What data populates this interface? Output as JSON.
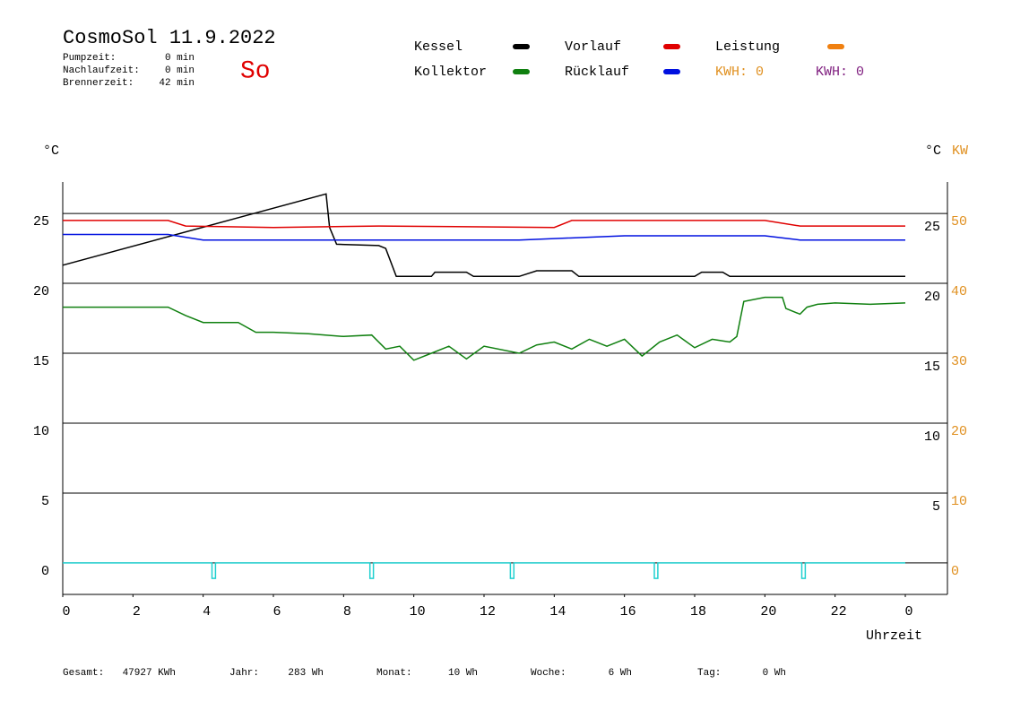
{
  "header": {
    "title": "CosmoSol 11.9.2022",
    "day": "So",
    "stats": [
      {
        "label": "Pumpzeit:",
        "value": "0 min"
      },
      {
        "label": "Nachlaufzeit:",
        "value": "0 min"
      },
      {
        "label": "Brennerzeit:",
        "value": "42 min"
      }
    ]
  },
  "legend_extra": [
    {
      "name": "Leistung",
      "color": "#f08010"
    }
  ],
  "kwh": [
    {
      "text": "KWH: 0",
      "color": "#e09020"
    },
    {
      "text": "KWH: 0",
      "color": "#802080"
    }
  ],
  "footer": [
    {
      "label": "Gesamt:",
      "value": "47927 KWh"
    },
    {
      "label": "Jahr:",
      "value": "283 Wh"
    },
    {
      "label": "Monat:",
      "value": "10 Wh"
    },
    {
      "label": "Woche:",
      "value": "6 Wh"
    },
    {
      "label": "Tag:",
      "value": "0 Wh"
    }
  ],
  "chart_data": {
    "type": "line",
    "xlabel": "Uhrzeit",
    "ylabel": "°C",
    "y2label_c": "°C",
    "y2label": "KW",
    "xlim": [
      0,
      25.2
    ],
    "xticks": [
      0,
      2,
      4,
      6,
      8,
      10,
      12,
      14,
      16,
      18,
      20,
      22,
      {
        "value": 24,
        "label": "0"
      }
    ],
    "ylim": [
      -2.25,
      27.25
    ],
    "yticks": [
      0,
      5,
      10,
      15,
      20,
      25
    ],
    "right_yticks": [
      5,
      10,
      15,
      20,
      25
    ],
    "y2lim": [
      -4.5,
      54.5
    ],
    "y2ticks": [
      0,
      10,
      20,
      30,
      40,
      50
    ],
    "grid": true,
    "series": [
      {
        "name": "Kessel",
        "color": "#000000",
        "x": [
          0,
          7.5,
          7.6,
          7.8,
          9.0,
          9.2,
          9.5,
          10.5,
          10.6,
          11.5,
          11.7,
          13.0,
          13.5,
          14.5,
          14.7,
          18.0,
          18.2,
          18.8,
          19.0,
          24
        ],
        "values": [
          21.3,
          26.4,
          24,
          22.8,
          22.7,
          22.5,
          20.5,
          20.5,
          20.8,
          20.8,
          20.5,
          20.5,
          20.9,
          20.9,
          20.5,
          20.5,
          20.8,
          20.8,
          20.5,
          20.5
        ]
      },
      {
        "name": "Kollektor",
        "color": "#108010",
        "x": [
          0,
          3,
          3.5,
          4,
          5,
          5.5,
          6,
          7,
          8,
          8.8,
          9.2,
          9.6,
          10,
          10.5,
          11,
          11.5,
          12,
          13,
          13.5,
          14,
          14.5,
          15,
          15.5,
          16,
          16.5,
          17,
          17.5,
          18,
          18.5,
          19,
          19.2,
          19.4,
          20,
          20.5,
          20.6,
          21,
          21.2,
          21.5,
          22,
          23,
          24
        ],
        "values": [
          18.3,
          18.3,
          17.7,
          17.2,
          17.2,
          16.5,
          16.5,
          16.4,
          16.2,
          16.3,
          15.3,
          15.5,
          14.5,
          15.0,
          15.5,
          14.6,
          15.5,
          15.0,
          15.6,
          15.8,
          15.3,
          16.0,
          15.5,
          16.0,
          14.8,
          15.8,
          16.3,
          15.4,
          16.0,
          15.8,
          16.2,
          18.7,
          19.0,
          19.0,
          18.2,
          17.8,
          18.3,
          18.5,
          18.6,
          18.5,
          18.6
        ]
      },
      {
        "name": "Vorlauf",
        "color": "#e00000",
        "x": [
          0,
          3,
          3.5,
          6,
          9,
          14,
          14.5,
          20,
          21,
          24
        ],
        "values": [
          24.5,
          24.5,
          24.1,
          24.0,
          24.1,
          24.0,
          24.5,
          24.5,
          24.1,
          24.1
        ]
      },
      {
        "name": "Rücklauf",
        "color": "#0010e0",
        "x": [
          0,
          3,
          4,
          9,
          13,
          16,
          20,
          21,
          24
        ],
        "values": [
          23.5,
          23.5,
          23.1,
          23.1,
          23.1,
          23.4,
          23.4,
          23.1,
          23.1
        ]
      },
      {
        "color": "#20d0d0",
        "x": [
          0,
          4.25,
          4.25,
          4.35,
          4.35,
          8.75,
          8.75,
          8.85,
          8.85,
          12.75,
          12.75,
          12.85,
          12.85,
          16.85,
          16.85,
          16.95,
          16.95,
          21.05,
          21.05,
          21.15,
          21.15,
          24
        ],
        "values": [
          0,
          0,
          -1.1,
          -1.1,
          0,
          0,
          -1.1,
          -1.1,
          0,
          0,
          -1.1,
          -1.1,
          0,
          0,
          -1.1,
          -1.1,
          0,
          0,
          -1.1,
          -1.1,
          0,
          0
        ]
      }
    ]
  }
}
